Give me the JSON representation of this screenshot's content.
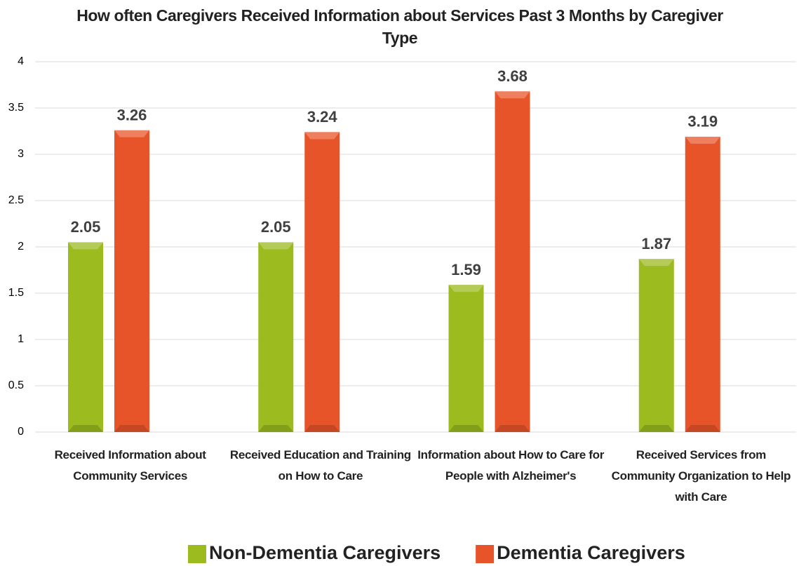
{
  "chart_data": {
    "type": "bar",
    "title": "How often Caregivers Received Information about Services Past 3 Months by Caregiver Type",
    "categories": [
      "Received Information about Community Services",
      "Received Education and Training on How to Care",
      "Information about How to Care for People with Alzheimer's",
      "Received Services from Community Organization to Help with Care"
    ],
    "series": [
      {
        "name": "Non-Dementia Caregivers",
        "color": "#9bbb1f",
        "values": [
          2.05,
          2.05,
          1.59,
          1.87
        ]
      },
      {
        "name": "Dementia Caregivers",
        "color": "#e8542a",
        "values": [
          3.26,
          3.24,
          3.68,
          3.19
        ]
      }
    ],
    "ylim": [
      0,
      4
    ],
    "yticks": [
      0,
      0.5,
      1,
      1.5,
      2,
      2.5,
      3,
      3.5,
      4
    ],
    "grid": true,
    "legend": "bottom"
  }
}
